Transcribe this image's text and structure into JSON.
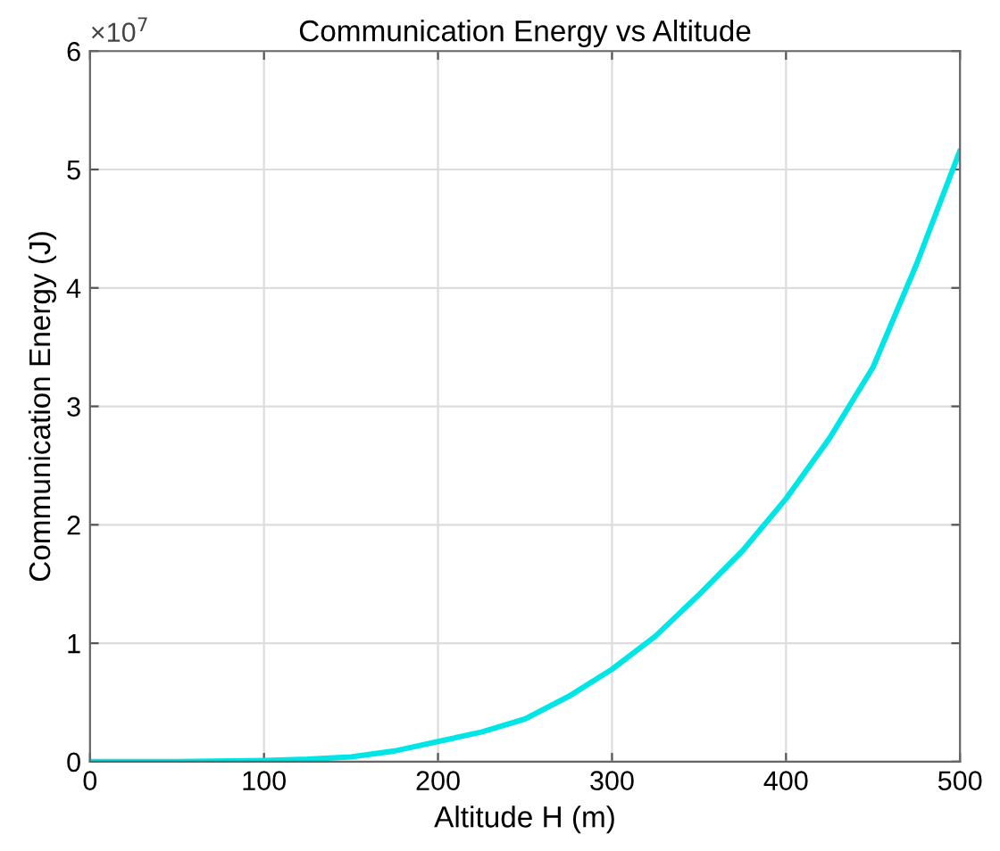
{
  "chart_data": {
    "type": "line",
    "title": "Communication Energy vs Altitude",
    "xlabel": "Altitude H (m)",
    "ylabel": "Communication Energy (J)",
    "annotations": [
      "×10$^{7}$"
    ],
    "x": [
      0,
      50,
      100,
      125,
      150,
      175,
      200,
      225,
      250,
      275,
      300,
      325,
      350,
      375,
      400,
      425,
      450,
      475,
      500
    ],
    "series": [
      {
        "color": "#00e5e5",
        "values": [
          0,
          0,
          0.01,
          0.02,
          0.04,
          0.09,
          0.17,
          0.25,
          0.36,
          0.55,
          0.78,
          1.06,
          1.41,
          1.78,
          2.22,
          2.73,
          3.33,
          4.2,
          5.16
        ]
      }
    ],
    "xlim": [
      0,
      500
    ],
    "xticks": [
      0,
      100,
      200,
      300,
      400,
      500
    ],
    "ylim": [
      0,
      6
    ],
    "yticks": [
      0,
      1,
      2,
      3,
      4,
      5,
      6
    ],
    "grid": true,
    "marker": "none",
    "line_style": "solid",
    "legend": false
  }
}
